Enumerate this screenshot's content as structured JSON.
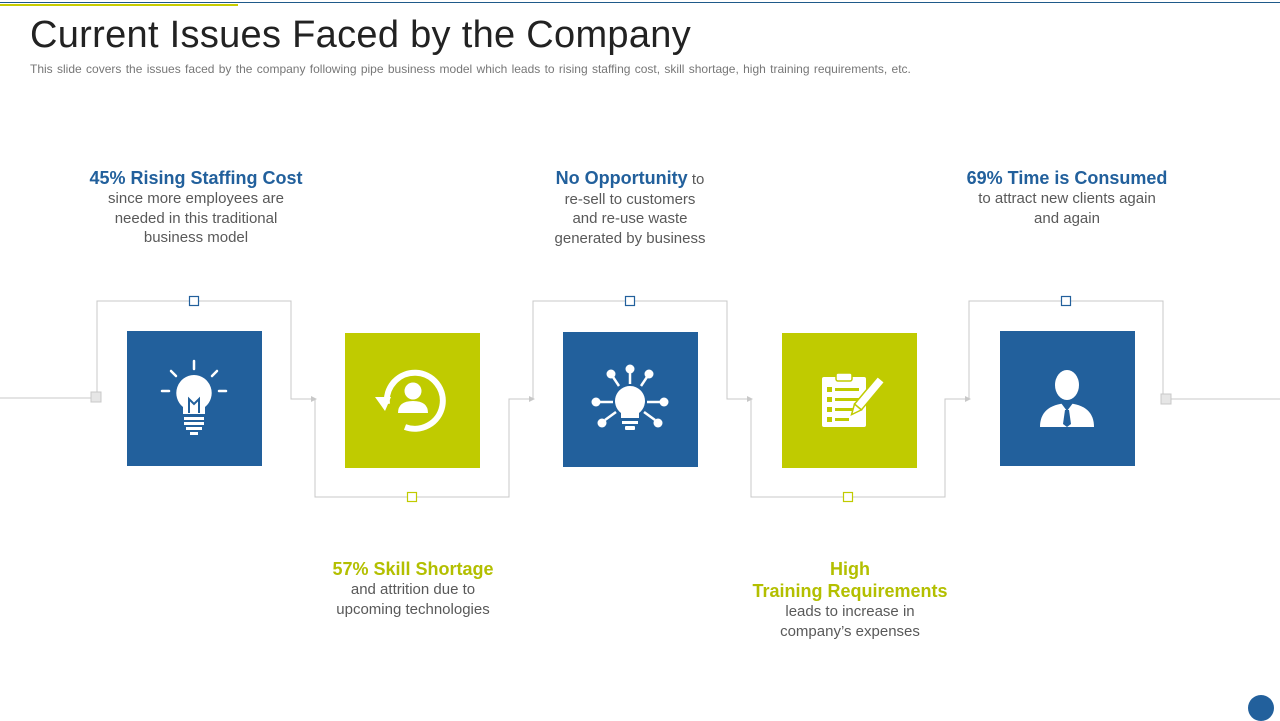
{
  "header": {
    "title": "Current Issues Faced by the Company",
    "subtitle": "This slide covers the issues faced by the company following pipe business model which leads to rising staffing cost, skill shortage, high training requirements, etc."
  },
  "steps": [
    {
      "heading": "45% Rising Staffing Cost",
      "lines": [
        "since more employees are",
        "needed in this traditional",
        "business model"
      ],
      "icon": "lightbulb-icon",
      "color": "#22609c"
    },
    {
      "heading": "57% Skill Shortage",
      "lines": [
        "and attrition due to",
        "upcoming technologies"
      ],
      "icon": "user-cycle-icon",
      "color": "#c0cb00"
    },
    {
      "heading": "No Opportunity",
      "heading_suffix": "to",
      "lines": [
        "re-sell to customers",
        "and re-use waste",
        "generated by business"
      ],
      "icon": "idea-network-icon",
      "color": "#22609c"
    },
    {
      "heading_lines": [
        "High",
        "Training Requirements"
      ],
      "lines": [
        "leads to increase in",
        "company’s expenses"
      ],
      "icon": "clipboard-pen-icon",
      "color": "#c0cb00"
    },
    {
      "heading": "69% Time is Consumed",
      "lines": [
        "to attract new clients again",
        "and again"
      ],
      "icon": "businessman-icon",
      "color": "#22609c"
    }
  ],
  "colors": {
    "blue": "#22609c",
    "green": "#c0cb00",
    "connector": "#c8c8c8"
  }
}
